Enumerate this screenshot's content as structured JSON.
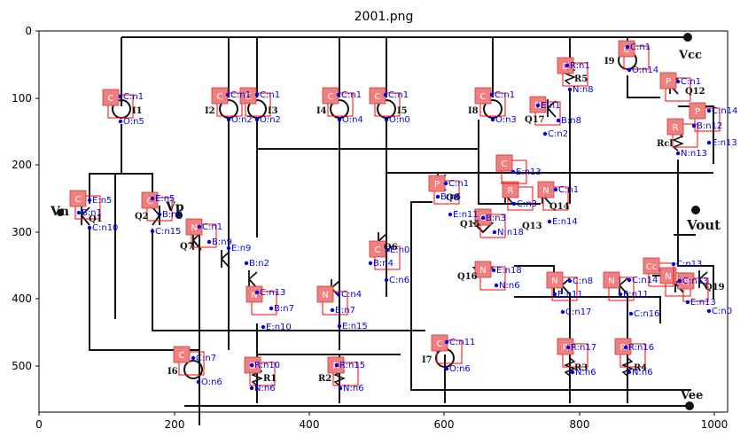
{
  "figure": {
    "title": "2001.png",
    "x_ticks": [
      "0",
      "200",
      "400",
      "600",
      "800",
      "1000"
    ],
    "y_ticks": [
      "0",
      "100",
      "200",
      "300",
      "400",
      "500"
    ],
    "colors": {
      "badge_fill": "#f08080",
      "box_stroke": "#ff0000",
      "pin": "#0000ee",
      "wire": "#111111"
    }
  },
  "schematic_labels": [
    {
      "id": "Vcc",
      "text": "Vcc"
    },
    {
      "id": "Vee",
      "text": "Vee"
    },
    {
      "id": "Vout",
      "text": "Vout"
    },
    {
      "id": "Vn",
      "text": "Vn"
    },
    {
      "id": "Vp",
      "text": "Vp"
    },
    {
      "id": "I1",
      "text": "I1"
    },
    {
      "id": "I2",
      "text": "I2"
    },
    {
      "id": "I3",
      "text": "I3"
    },
    {
      "id": "I4",
      "text": "I4"
    },
    {
      "id": "I5",
      "text": "I5"
    },
    {
      "id": "I6",
      "text": "I6"
    },
    {
      "id": "I7",
      "text": "I7"
    },
    {
      "id": "I8",
      "text": "I8"
    },
    {
      "id": "I9",
      "text": "I9"
    },
    {
      "id": "Q1",
      "text": "Q1"
    },
    {
      "id": "Q2",
      "text": "Q2"
    },
    {
      "id": "Q6",
      "text": "Q6"
    },
    {
      "id": "Q7",
      "text": "Q7"
    },
    {
      "id": "Q8",
      "text": "Q8"
    },
    {
      "id": "Q12",
      "text": "Q12"
    },
    {
      "id": "Q13",
      "text": "Q13"
    },
    {
      "id": "Q14",
      "text": "Q14"
    },
    {
      "id": "Q15",
      "text": "Q15"
    },
    {
      "id": "Q16",
      "text": "Q16"
    },
    {
      "id": "Q17",
      "text": "Q17"
    },
    {
      "id": "Q19",
      "text": "Q19"
    },
    {
      "id": "R1",
      "text": "R1"
    },
    {
      "id": "R2",
      "text": "R2"
    },
    {
      "id": "R3",
      "text": "R3"
    },
    {
      "id": "R4",
      "text": "R4"
    },
    {
      "id": "R5",
      "text": "R5"
    },
    {
      "id": "Rcl",
      "text": "Rcl"
    }
  ],
  "badges": [
    "C",
    "C",
    "C",
    "C",
    "C",
    "C",
    "C",
    "C",
    "C",
    "C",
    "P",
    "P",
    "P",
    "N",
    "N",
    "N",
    "N",
    "N",
    "N",
    "D",
    "D",
    "D",
    "R",
    "R",
    "R",
    "R",
    "R",
    "N",
    "N",
    "N",
    "N",
    "C",
    "C",
    "C",
    "C",
    "Cc",
    "N",
    "N"
  ],
  "pin_labels": [
    "C:n1",
    "O:n14",
    "R:n1",
    "N:n8",
    "C:n1",
    "O:n5",
    "C:n1",
    "O:n2",
    "C:n1",
    "O:n2",
    "C:n1",
    "O:n4",
    "C:n1",
    "O:n0",
    "C:n1",
    "O:n3",
    "E:n1",
    "B:n8",
    "C:n2",
    "C:n1",
    "C:n14",
    "B:n12",
    "E:n13",
    "N:n13",
    "E:n5",
    "B:n1",
    "C:n10",
    "E:n5",
    "B:n2",
    "C:n15",
    "C:n1",
    "B:n9",
    "E:n9",
    "B:n2",
    "C:n13",
    "B:n7",
    "E:n10",
    "C:n4",
    "B:n7",
    "E:n15",
    "E:n0",
    "B:n4",
    "C:n6",
    "C:n1",
    "B:n6",
    "E:n11",
    "B:n3",
    "E:n18",
    "E:n13",
    "C:n3",
    "C:n1",
    "E:n14",
    "N:n18",
    "N:n6",
    "C:n8",
    "E:n11",
    "C:n17",
    "C:n14",
    "E:n11",
    "C:n16",
    "C:n13",
    "C:n13",
    "E:n13",
    "C:n0",
    "C:n7",
    "O:n6",
    "R:n10",
    "N:n6",
    "R:n15",
    "N:n6",
    "C:n11",
    "O:n6",
    "R:n17",
    "N:n6",
    "R:n16",
    "N:n6"
  ]
}
